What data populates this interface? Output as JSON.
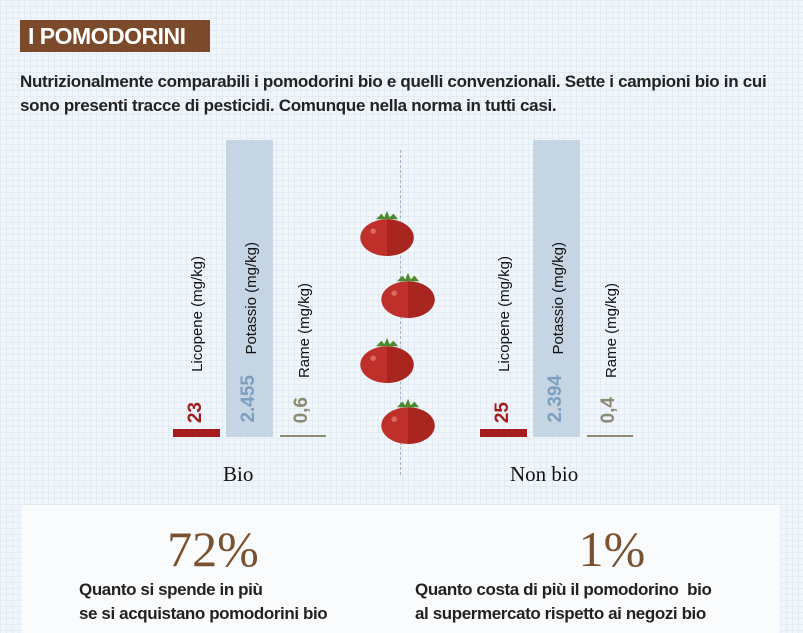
{
  "title": "I POMODORINI",
  "intro": "Nutrizionalmente comparabili i pomodorini bio e quelli convenzionali. Sette i campioni bio in cui sono presenti tracce di pesticidi. Comunque nella norma in tutti casi.",
  "chart_data": {
    "type": "bar",
    "categories": [
      "Licopene (mg/kg)",
      "Potassio (mg/kg)",
      "Rame (mg/kg)"
    ],
    "series": [
      {
        "name": "Bio",
        "values": [
          23,
          2455,
          0.6
        ],
        "labels": [
          "23",
          "2.455",
          "0,6"
        ]
      },
      {
        "name": "Non bio",
        "values": [
          25,
          2394,
          0.4
        ],
        "labels": [
          "25",
          "2.394",
          "0,4"
        ]
      }
    ],
    "colors": {
      "licopene": "#a51c1c",
      "potassio": "#c6d5e4",
      "potassio_text": "#7d9fbf",
      "rame": "#8b8a72"
    }
  },
  "stats": [
    {
      "value": "72%",
      "caption_1": "Quanto si spende in più",
      "caption_2": "se si acquistano pomodorini bio"
    },
    {
      "value": "1%",
      "caption_1": "Quanto costa di più il pomodorino  bio",
      "caption_2": "al supermercato rispetto ai negozi bio"
    }
  ],
  "colors": {
    "title_bg": "#7b4a2b",
    "tomato": "#c0302a",
    "accent": "#7b5230"
  }
}
